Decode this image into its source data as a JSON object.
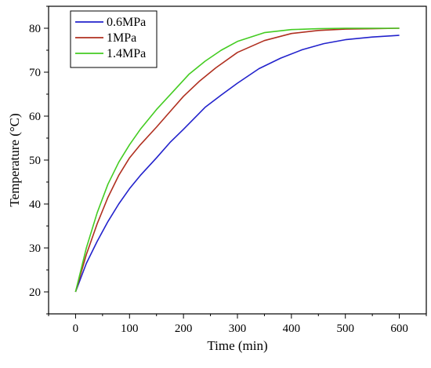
{
  "chart_data": {
    "type": "line",
    "title": "",
    "xlabel": "Time (min)",
    "ylabel": "Temperature (°C)",
    "xlim": [
      -50,
      650
    ],
    "ylim": [
      15,
      85
    ],
    "xticks": [
      0,
      100,
      200,
      300,
      400,
      500,
      600
    ],
    "yticks": [
      20,
      30,
      40,
      50,
      60,
      70,
      80
    ],
    "grid": false,
    "legend_position": "top-left",
    "series": [
      {
        "name": "0.6MPa",
        "color": "#2222cc",
        "x": [
          0,
          20,
          40,
          60,
          80,
          100,
          120,
          150,
          175,
          200,
          220,
          240,
          270,
          300,
          340,
          380,
          420,
          460,
          500,
          550,
          600
        ],
        "y": [
          20,
          26.5,
          31.5,
          36,
          40,
          43.5,
          46.5,
          50.5,
          54,
          57,
          59.5,
          62,
          64.8,
          67.5,
          70.8,
          73.2,
          75.1,
          76.5,
          77.4,
          78,
          78.4
        ]
      },
      {
        "name": "1MPa",
        "color": "#b03020",
        "x": [
          0,
          20,
          40,
          60,
          80,
          100,
          120,
          150,
          175,
          200,
          230,
          260,
          300,
          350,
          400,
          450,
          500,
          550,
          600
        ],
        "y": [
          20,
          28.5,
          35.5,
          41.5,
          46.5,
          50.5,
          53.5,
          57.5,
          61,
          64.5,
          68,
          71,
          74.5,
          77.2,
          78.8,
          79.5,
          79.8,
          79.9,
          80
        ]
      },
      {
        "name": "1.4MPa",
        "color": "#44cc22",
        "x": [
          0,
          20,
          40,
          60,
          80,
          100,
          120,
          150,
          180,
          210,
          240,
          270,
          300,
          350,
          400,
          450,
          500,
          550,
          600
        ],
        "y": [
          20,
          30,
          38,
          44.5,
          49.5,
          53.5,
          57,
          61.5,
          65.5,
          69.5,
          72.5,
          75,
          77,
          79,
          79.7,
          79.9,
          80,
          80,
          80
        ]
      }
    ]
  }
}
